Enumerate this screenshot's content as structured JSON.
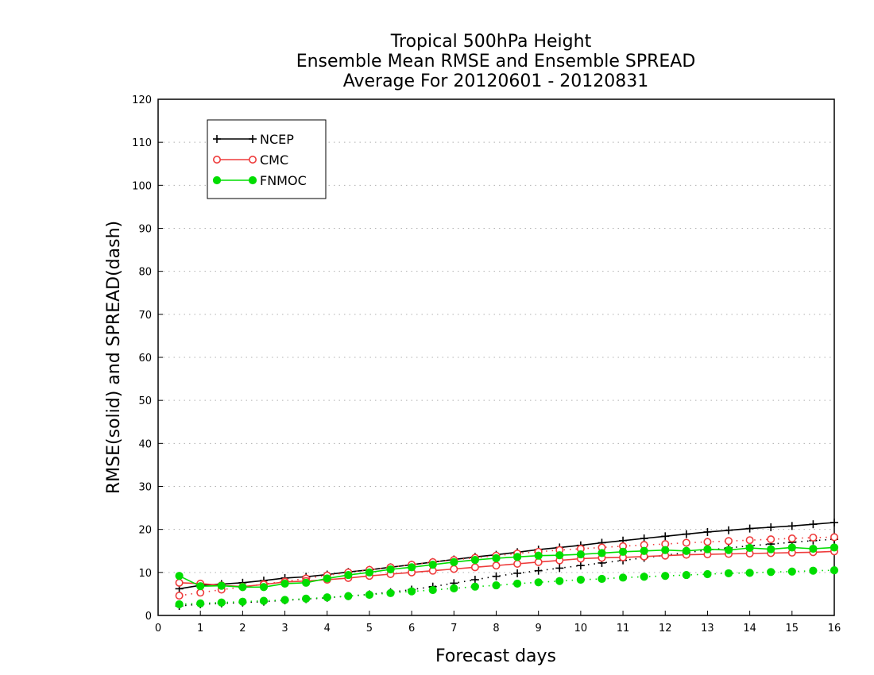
{
  "chart_data": {
    "type": "line",
    "title_lines": [
      "Tropical 500hPa Height",
      "Ensemble Mean RMSE and Ensemble SPREAD",
      "Average For 20120601 - 20120831"
    ],
    "xlabel": "Forecast days",
    "ylabel": "RMSE(solid) and SPREAD(dash)",
    "xlim": [
      0,
      16
    ],
    "ylim": [
      0,
      120
    ],
    "xticks": [
      0,
      1,
      2,
      3,
      4,
      5,
      6,
      7,
      8,
      9,
      10,
      11,
      12,
      13,
      14,
      15,
      16
    ],
    "yticks": [
      0,
      10,
      20,
      30,
      40,
      50,
      60,
      70,
      80,
      90,
      100,
      110,
      120
    ],
    "grid": true,
    "legend_position": "top-left",
    "x": [
      0.5,
      1,
      1.5,
      2,
      2.5,
      3,
      3.5,
      4,
      4.5,
      5,
      5.5,
      6,
      6.5,
      7,
      7.5,
      8,
      8.5,
      9,
      9.5,
      10,
      10.5,
      11,
      11.5,
      12,
      12.5,
      13,
      13.5,
      14,
      14.5,
      15,
      15.5,
      16
    ],
    "series": [
      {
        "name": "NCEP",
        "color": "#000000",
        "marker": "plus",
        "rmse": [
          6.2,
          7.0,
          7.3,
          7.6,
          8.1,
          8.7,
          9.0,
          9.5,
          10.1,
          10.6,
          11.2,
          11.8,
          12.4,
          13.0,
          13.6,
          14.1,
          14.7,
          15.3,
          15.8,
          16.3,
          16.9,
          17.4,
          17.9,
          18.4,
          18.9,
          19.4,
          19.8,
          20.2,
          20.5,
          20.8,
          21.2,
          21.6
        ],
        "spread": [
          2.2,
          2.6,
          2.8,
          3.0,
          3.2,
          3.5,
          3.8,
          4.1,
          4.5,
          4.9,
          5.4,
          6.0,
          6.7,
          7.5,
          8.3,
          9.1,
          9.8,
          10.4,
          11.0,
          11.6,
          12.2,
          12.8,
          13.4,
          14.0,
          14.6,
          15.2,
          15.7,
          16.2,
          16.6,
          17.0,
          17.4,
          17.7
        ]
      },
      {
        "name": "CMC",
        "color": "#ee3b3b",
        "marker": "open-circle",
        "rmse": [
          7.6,
          7.4,
          7.0,
          6.7,
          7.2,
          7.8,
          8.0,
          8.3,
          8.7,
          9.2,
          9.6,
          10.0,
          10.4,
          10.8,
          11.2,
          11.6,
          12.0,
          12.4,
          12.8,
          13.2,
          13.4,
          13.5,
          13.7,
          13.9,
          14.1,
          14.2,
          14.3,
          14.4,
          14.5,
          14.6,
          14.7,
          14.9
        ],
        "spread": [
          4.6,
          5.3,
          6.0,
          6.6,
          7.3,
          7.9,
          8.6,
          9.3,
          10.0,
          10.6,
          11.2,
          11.8,
          12.4,
          12.9,
          13.4,
          13.9,
          14.4,
          14.8,
          15.2,
          15.5,
          15.8,
          16.1,
          16.4,
          16.6,
          16.9,
          17.1,
          17.3,
          17.5,
          17.7,
          17.9,
          18.1,
          18.2
        ]
      },
      {
        "name": "FNMOC",
        "color": "#00dd00",
        "marker": "filled-circle",
        "rmse": [
          9.2,
          6.8,
          6.9,
          6.6,
          6.6,
          7.4,
          7.6,
          8.6,
          9.4,
          10.0,
          10.7,
          11.2,
          11.8,
          12.4,
          12.9,
          13.3,
          13.6,
          13.9,
          14.0,
          14.2,
          14.5,
          14.8,
          15.0,
          15.2,
          15.0,
          15.4,
          15.2,
          15.7,
          15.4,
          15.8,
          15.5,
          15.8
        ],
        "spread": [
          2.6,
          2.8,
          3.0,
          3.2,
          3.4,
          3.6,
          3.9,
          4.2,
          4.5,
          4.8,
          5.2,
          5.6,
          5.9,
          6.3,
          6.7,
          7.0,
          7.4,
          7.7,
          8.0,
          8.3,
          8.5,
          8.8,
          9.0,
          9.2,
          9.4,
          9.6,
          9.8,
          9.9,
          10.1,
          10.2,
          10.4,
          10.5
        ]
      }
    ]
  }
}
